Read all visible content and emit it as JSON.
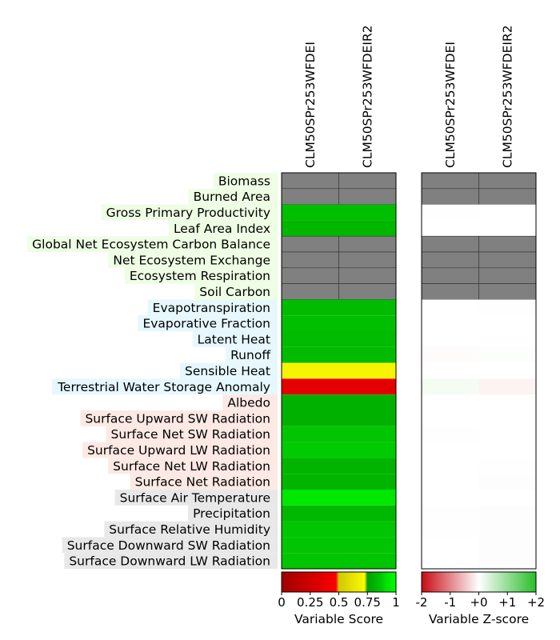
{
  "chart_data": [
    {
      "type": "heatmap",
      "name": "Variable Score",
      "columns": [
        "CLM50SPr253WFDEI",
        "CLM50SPr253WFDEIR2"
      ],
      "rows": [
        {
          "label": "Biomass",
          "group": "ecosystem",
          "values": [
            null,
            null
          ]
        },
        {
          "label": "Burned Area",
          "group": "ecosystem",
          "values": [
            null,
            null
          ]
        },
        {
          "label": "Gross Primary Productivity",
          "group": "ecosystem",
          "values": [
            0.84,
            0.84
          ]
        },
        {
          "label": "Leaf Area Index",
          "group": "ecosystem",
          "values": [
            0.82,
            0.82
          ]
        },
        {
          "label": "Global Net Ecosystem Carbon Balance",
          "group": "ecosystem",
          "values": [
            null,
            null
          ]
        },
        {
          "label": "Net Ecosystem Exchange",
          "group": "ecosystem",
          "values": [
            null,
            null
          ]
        },
        {
          "label": "Ecosystem Respiration",
          "group": "ecosystem",
          "values": [
            null,
            null
          ]
        },
        {
          "label": "Soil Carbon",
          "group": "ecosystem",
          "values": [
            null,
            null
          ]
        },
        {
          "label": "Evapotranspiration",
          "group": "hydrology",
          "values": [
            0.83,
            0.83
          ]
        },
        {
          "label": "Evaporative Fraction",
          "group": "hydrology",
          "values": [
            0.84,
            0.84
          ]
        },
        {
          "label": "Latent Heat",
          "group": "hydrology",
          "values": [
            0.83,
            0.83
          ]
        },
        {
          "label": "Runoff",
          "group": "hydrology",
          "values": [
            0.83,
            0.83
          ]
        },
        {
          "label": "Sensible Heat",
          "group": "hydrology",
          "values": [
            0.7,
            0.7
          ]
        },
        {
          "label": "Terrestrial Water Storage Anomaly",
          "group": "hydrology",
          "values": [
            0.36,
            0.36
          ]
        },
        {
          "label": "Albedo",
          "group": "radiation",
          "values": [
            0.8,
            0.8
          ]
        },
        {
          "label": "Surface Upward SW Radiation",
          "group": "radiation",
          "values": [
            0.8,
            0.8
          ]
        },
        {
          "label": "Surface Net SW Radiation",
          "group": "radiation",
          "values": [
            0.86,
            0.86
          ]
        },
        {
          "label": "Surface Upward LW Radiation",
          "group": "radiation",
          "values": [
            0.88,
            0.88
          ]
        },
        {
          "label": "Surface Net LW Radiation",
          "group": "radiation",
          "values": [
            0.81,
            0.81
          ]
        },
        {
          "label": "Surface Net Radiation",
          "group": "radiation",
          "values": [
            0.81,
            0.81
          ]
        },
        {
          "label": "Surface Air Temperature",
          "group": "forcing",
          "values": [
            0.93,
            0.93
          ]
        },
        {
          "label": "Precipitation",
          "group": "forcing",
          "values": [
            0.82,
            0.82
          ]
        },
        {
          "label": "Surface Relative Humidity",
          "group": "forcing",
          "values": [
            0.86,
            0.86
          ]
        },
        {
          "label": "Surface Downward SW Radiation",
          "group": "forcing",
          "values": [
            0.86,
            0.86
          ]
        },
        {
          "label": "Surface Downward LW Radiation",
          "group": "forcing",
          "values": [
            0.86,
            0.86
          ]
        }
      ],
      "colorbar": {
        "label": "Variable Score",
        "ticks": [
          "0",
          "0.25",
          "0.5",
          "0.75",
          "1"
        ],
        "range": [
          0,
          1
        ]
      }
    },
    {
      "type": "heatmap",
      "name": "Variable Z-score",
      "columns": [
        "CLM50SPr253WFDEI",
        "CLM50SPr253WFDEIR2"
      ],
      "rows": [
        {
          "label": "Biomass",
          "values": [
            null,
            null
          ]
        },
        {
          "label": "Burned Area",
          "values": [
            null,
            null
          ]
        },
        {
          "label": "Gross Primary Productivity",
          "values": [
            0.02,
            0.0
          ]
        },
        {
          "label": "Leaf Area Index",
          "values": [
            0.0,
            0.0
          ]
        },
        {
          "label": "Global Net Ecosystem Carbon Balance",
          "values": [
            null,
            null
          ]
        },
        {
          "label": "Net Ecosystem Exchange",
          "values": [
            null,
            null
          ]
        },
        {
          "label": "Ecosystem Respiration",
          "values": [
            null,
            null
          ]
        },
        {
          "label": "Soil Carbon",
          "values": [
            null,
            null
          ]
        },
        {
          "label": "Evapotranspiration",
          "values": [
            0.0,
            0.02
          ]
        },
        {
          "label": "Evaporative Fraction",
          "values": [
            0.0,
            0.0
          ]
        },
        {
          "label": "Latent Heat",
          "values": [
            0.0,
            0.0
          ]
        },
        {
          "label": "Runoff",
          "values": [
            -0.03,
            0.03
          ]
        },
        {
          "label": "Sensible Heat",
          "values": [
            0.0,
            0.0
          ]
        },
        {
          "label": "Terrestrial Water Storage Anomaly",
          "values": [
            0.1,
            -0.1
          ]
        },
        {
          "label": "Albedo",
          "values": [
            0.0,
            0.0
          ]
        },
        {
          "label": "Surface Upward SW Radiation",
          "values": [
            0.0,
            0.0
          ]
        },
        {
          "label": "Surface Net SW Radiation",
          "values": [
            0.02,
            0.0
          ]
        },
        {
          "label": "Surface Upward LW Radiation",
          "values": [
            0.0,
            0.0
          ]
        },
        {
          "label": "Surface Net LW Radiation",
          "values": [
            0.0,
            0.02
          ]
        },
        {
          "label": "Surface Net Radiation",
          "values": [
            0.0,
            -0.02
          ]
        },
        {
          "label": "Surface Air Temperature",
          "values": [
            0.0,
            0.0
          ]
        },
        {
          "label": "Precipitation",
          "values": [
            0.02,
            -0.02
          ]
        },
        {
          "label": "Surface Relative Humidity",
          "values": [
            0.02,
            -0.02
          ]
        },
        {
          "label": "Surface Downward SW Radiation",
          "values": [
            0.0,
            -0.02
          ]
        },
        {
          "label": "Surface Downward LW Radiation",
          "values": [
            0.0,
            -0.02
          ]
        }
      ],
      "colorbar": {
        "label": "Variable Z-score",
        "ticks": [
          "-2",
          "-1",
          "+0",
          "+1",
          "+2"
        ],
        "range": [
          -2,
          2
        ]
      }
    }
  ],
  "colors": {
    "missing": "#808080",
    "group_backgrounds": {
      "ecosystem": "#eefee4",
      "hydrology": "#e6f8fe",
      "radiation": "#fde9e4",
      "forcing": "#e8e8e8"
    }
  }
}
